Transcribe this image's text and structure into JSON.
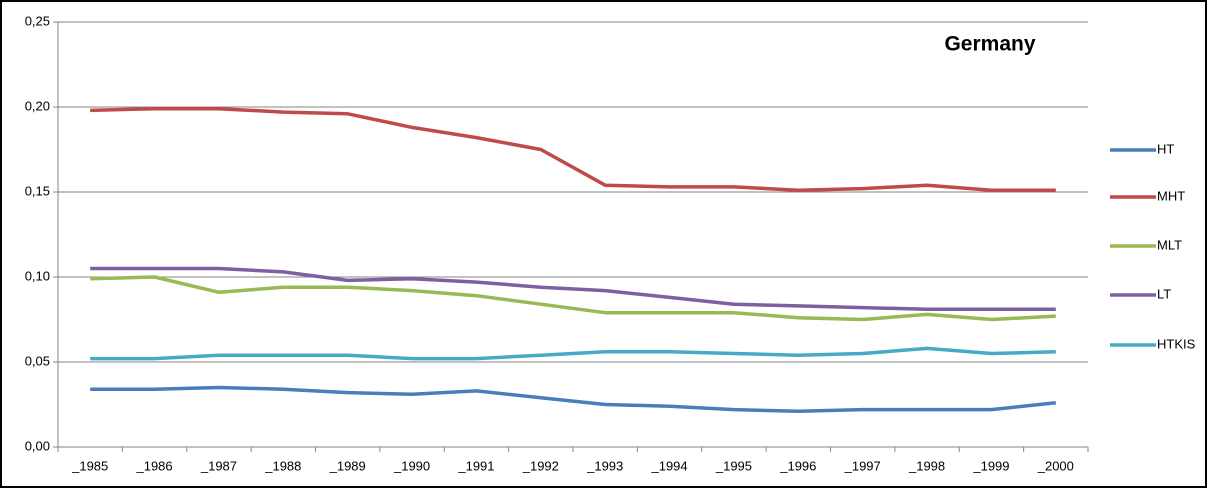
{
  "chart_data": {
    "type": "line",
    "title": "Germany",
    "categories": [
      "_1985",
      "_1986",
      "_1987",
      "_1988",
      "_1989",
      "_1990",
      "_1991",
      "_1992",
      "_1993",
      "_1994",
      "_1995",
      "_1996",
      "_1997",
      "_1998",
      "_1999",
      "_2000"
    ],
    "series": [
      {
        "name": "HT",
        "color": "#4a7ebb",
        "values": [
          0.034,
          0.034,
          0.035,
          0.034,
          0.032,
          0.031,
          0.033,
          0.029,
          0.025,
          0.024,
          0.022,
          0.021,
          0.022,
          0.022,
          0.022,
          0.026
        ]
      },
      {
        "name": "MHT",
        "color": "#be4b48",
        "values": [
          0.198,
          0.199,
          0.199,
          0.197,
          0.196,
          0.188,
          0.182,
          0.175,
          0.154,
          0.153,
          0.153,
          0.151,
          0.152,
          0.154,
          0.151,
          0.151
        ]
      },
      {
        "name": "MLT",
        "color": "#98b954",
        "values": [
          0.099,
          0.1,
          0.091,
          0.094,
          0.094,
          0.092,
          0.089,
          0.084,
          0.079,
          0.079,
          0.079,
          0.076,
          0.075,
          0.078,
          0.075,
          0.077
        ]
      },
      {
        "name": "LT",
        "color": "#7d60a0",
        "values": [
          0.105,
          0.105,
          0.105,
          0.103,
          0.098,
          0.099,
          0.097,
          0.094,
          0.092,
          0.088,
          0.084,
          0.083,
          0.082,
          0.081,
          0.081,
          0.081
        ]
      },
      {
        "name": "HTKIS",
        "color": "#46aac5",
        "values": [
          0.052,
          0.052,
          0.054,
          0.054,
          0.054,
          0.052,
          0.052,
          0.054,
          0.056,
          0.056,
          0.055,
          0.054,
          0.055,
          0.058,
          0.055,
          0.056
        ]
      }
    ],
    "ylim": [
      0,
      0.25
    ],
    "yticks": [
      {
        "value": 0,
        "label": "0,00"
      },
      {
        "value": 0.05,
        "label": "0,05"
      },
      {
        "value": 0.1,
        "label": "0,10"
      },
      {
        "value": 0.15,
        "label": "0,15"
      },
      {
        "value": 0.2,
        "label": "0,20"
      },
      {
        "value": 0.25,
        "label": "0,25"
      }
    ],
    "grid": true,
    "legend": "right"
  }
}
